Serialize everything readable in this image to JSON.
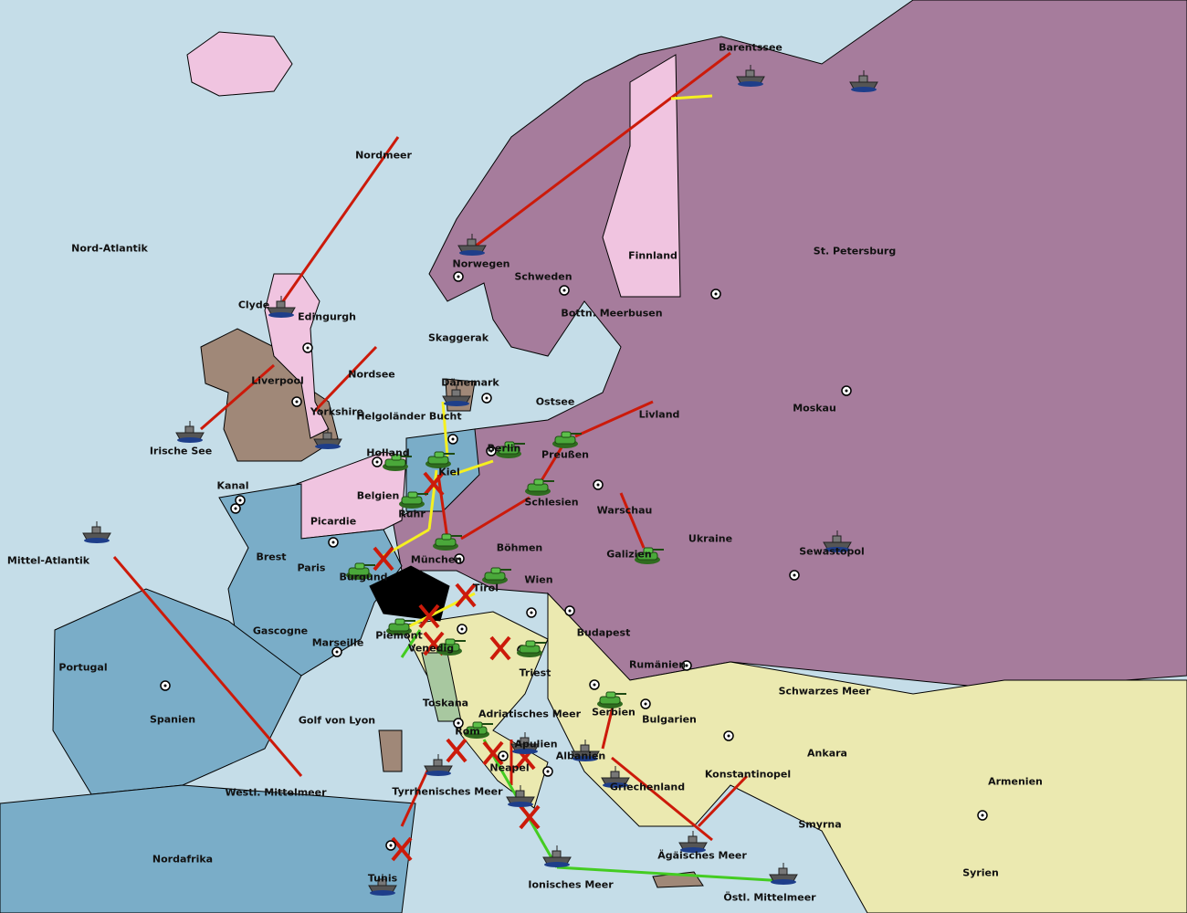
{
  "colors": {
    "sea": "#c5dde8",
    "purple": "#a67c9c",
    "pink": "#f0c4e0",
    "blue": "#7aadc8",
    "yellow": "#ebe9b0",
    "brown": "#a08878",
    "green": "#a8c8a0",
    "black": "#000000",
    "order_move": "#cc1a0a",
    "order_support": "#f5f020",
    "order_convoy": "#44cc22",
    "order_other": "#cc33aa"
  },
  "regions": [
    "Barentssee",
    "Nordmeer",
    "Nord-Atlantik",
    "Finnland",
    "St. Petersburg",
    "Norwegen",
    "Schweden",
    "Bottn. Meerbusen",
    "Clyde",
    "Edingurgh",
    "Skaggerak",
    "Liverpool",
    "Nordsee",
    "Dänemark",
    "Ostsee",
    "Livland",
    "Moskau",
    "Yorkshire",
    "Helgoländer Bucht",
    "Irische See",
    "Holland",
    "Kiel",
    "Berlin",
    "Preußen",
    "Kanal",
    "Belgien",
    "Schlesien",
    "Warschau",
    "Ruhr",
    "Picardie",
    "Ukraine",
    "Brest",
    "Paris",
    "Böhmen",
    "München",
    "Galizien",
    "Sewastopol",
    "Mittel-Atlantik",
    "Burgund",
    "Wien",
    "Tirol",
    "Gascogne",
    "Piemont",
    "Marseille",
    "Budapest",
    "Venedig",
    "Rumänien",
    "Portugal",
    "Triest",
    "Spanien",
    "Toskana",
    "Adriatisches Meer",
    "Schwarzes Meer",
    "Serbien",
    "Golf von Lyon",
    "Bulgarien",
    "Rom",
    "Apulien",
    "Albanien",
    "Ankara",
    "Neapel",
    "Konstantinopel",
    "Armenien",
    "Westl. Mittelmeer",
    "Tyrrhenisches Meer",
    "Griechenland",
    "Smyrna",
    "Nordafrika",
    "Ägäisches Meer",
    "Syrien",
    "Tunis",
    "Ionisches Meer",
    "Östl. Mittelmeer"
  ],
  "units": [
    {
      "type": "fleet",
      "region": "Barentssee"
    },
    {
      "type": "fleet",
      "region": "St. Petersburg"
    },
    {
      "type": "fleet",
      "region": "Norwegen"
    },
    {
      "type": "fleet",
      "region": "Clyde"
    },
    {
      "type": "fleet",
      "region": "Irische See"
    },
    {
      "type": "fleet",
      "region": "Yorkshire"
    },
    {
      "type": "fleet",
      "region": "Dänemark"
    },
    {
      "type": "army",
      "region": "Holland"
    },
    {
      "type": "army",
      "region": "Kiel"
    },
    {
      "type": "army",
      "region": "Ruhr"
    },
    {
      "type": "army",
      "region": "Berlin"
    },
    {
      "type": "army",
      "region": "Preußen"
    },
    {
      "type": "army",
      "region": "Schlesien"
    },
    {
      "type": "army",
      "region": "München"
    },
    {
      "type": "army",
      "region": "Burgund"
    },
    {
      "type": "army",
      "region": "Tirol"
    },
    {
      "type": "army",
      "region": "Galizien"
    },
    {
      "type": "fleet",
      "region": "Sewastopol"
    },
    {
      "type": "fleet",
      "region": "Mittel-Atlantik"
    },
    {
      "type": "army",
      "region": "Piemont"
    },
    {
      "type": "army",
      "region": "Venedig"
    },
    {
      "type": "army",
      "region": "Triest"
    },
    {
      "type": "army",
      "region": "Serbien"
    },
    {
      "type": "army",
      "region": "Rom"
    },
    {
      "type": "fleet",
      "region": "Apulien"
    },
    {
      "type": "fleet",
      "region": "Albanien"
    },
    {
      "type": "fleet",
      "region": "Neapel"
    },
    {
      "type": "fleet",
      "region": "Griechenland"
    },
    {
      "type": "fleet",
      "region": "Tyrrhenisches Meer"
    },
    {
      "type": "fleet",
      "region": "Ägäisches Meer"
    },
    {
      "type": "fleet",
      "region": "Tunis"
    },
    {
      "type": "fleet",
      "region": "Ionisches Meer"
    },
    {
      "type": "fleet",
      "region": "Östl. Mittelmeer"
    }
  ]
}
